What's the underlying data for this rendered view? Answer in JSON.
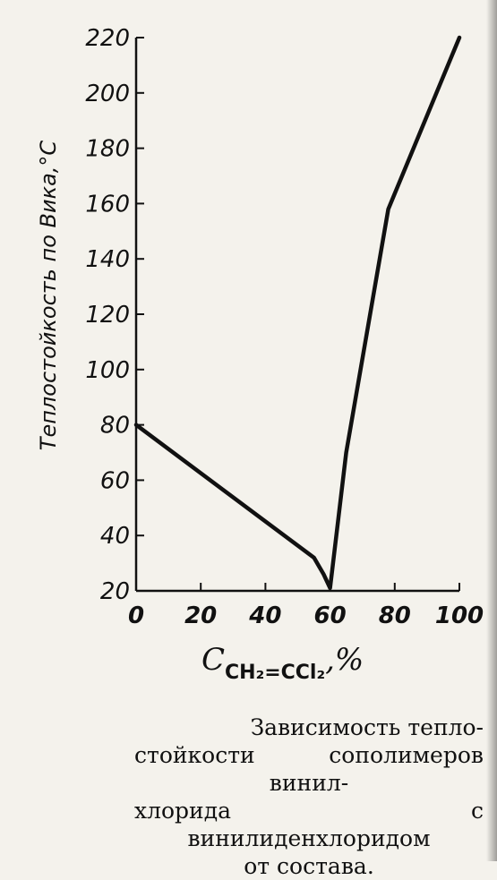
{
  "chart_data": {
    "type": "line",
    "ylabel": "Теплостойкость по Вика,°С",
    "xlabel": {
      "prefix": "C",
      "subscript": "CH₂=CCl₂",
      "suffix": ",%"
    },
    "xlim": [
      0,
      100
    ],
    "ylim": [
      20,
      220
    ],
    "xticks": [
      "0",
      "20",
      "40",
      "60",
      "80",
      "100"
    ],
    "yticks": [
      "20",
      "40",
      "60",
      "80",
      "100",
      "120",
      "140",
      "160",
      "180",
      "200",
      "220"
    ],
    "grid": false,
    "series": [
      {
        "x": [
          0,
          55,
          58,
          60,
          65,
          78,
          100
        ],
        "y": [
          80,
          32,
          26,
          21,
          70,
          158,
          220
        ]
      }
    ]
  },
  "caption": {
    "lines": [
      "Зависимость тепло-",
      "стойкости сополимеров винил-",
      "хлорида с винилиденхлоридом",
      "от состава."
    ]
  },
  "colors": {
    "ink": "#111111",
    "paper": "#f4f2ec"
  }
}
